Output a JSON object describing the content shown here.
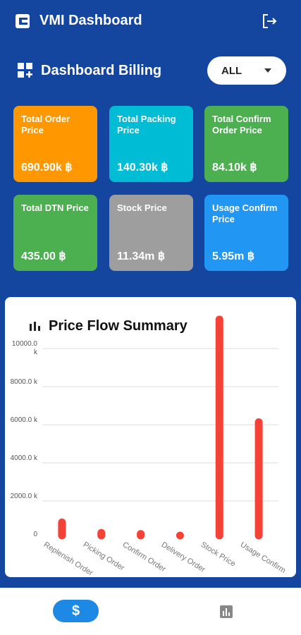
{
  "header": {
    "title": "VMI Dashboard"
  },
  "section": {
    "title": "Dashboard Billing",
    "filter": "ALL"
  },
  "cards": [
    {
      "label": "Total Order Price",
      "value": "690.90k ฿",
      "color": "#ff9800"
    },
    {
      "label": "Total Packing Price",
      "value": "140.30k ฿",
      "color": "#00bcd4"
    },
    {
      "label": "Total Confirm Order Price",
      "value": "84.10k ฿",
      "color": "#4caf50"
    },
    {
      "label": "Total DTN Price",
      "value": "435.00 ฿",
      "color": "#4caf50"
    },
    {
      "label": "Stock Price",
      "value": "11.34m ฿",
      "color": "#9e9e9e"
    },
    {
      "label": "Usage Confirm Price",
      "value": "5.95m ฿",
      "color": "#2196f3"
    }
  ],
  "chart_data": {
    "type": "bar",
    "title": "Price Flow Summary",
    "categories": [
      "Replenish Order",
      "Picking Order",
      "Confirm Order",
      "Delivery Order",
      "Stock Price",
      "Usage Confirm"
    ],
    "values": [
      690.9,
      140.3,
      84.1,
      0.435,
      11340,
      5950
    ],
    "color": "#f44336",
    "ylim": [
      0,
      12000
    ],
    "yticks": [
      0,
      {
        "value": 2000,
        "label": "2000.0 k"
      },
      {
        "value": 4000,
        "label": "4000.0 k"
      },
      {
        "value": 6000,
        "label": "6000.0 k"
      },
      {
        "value": 8000,
        "label": "8000.0 k"
      },
      {
        "value": 10000,
        "label": "10000.0 k"
      }
    ],
    "grid": true
  }
}
